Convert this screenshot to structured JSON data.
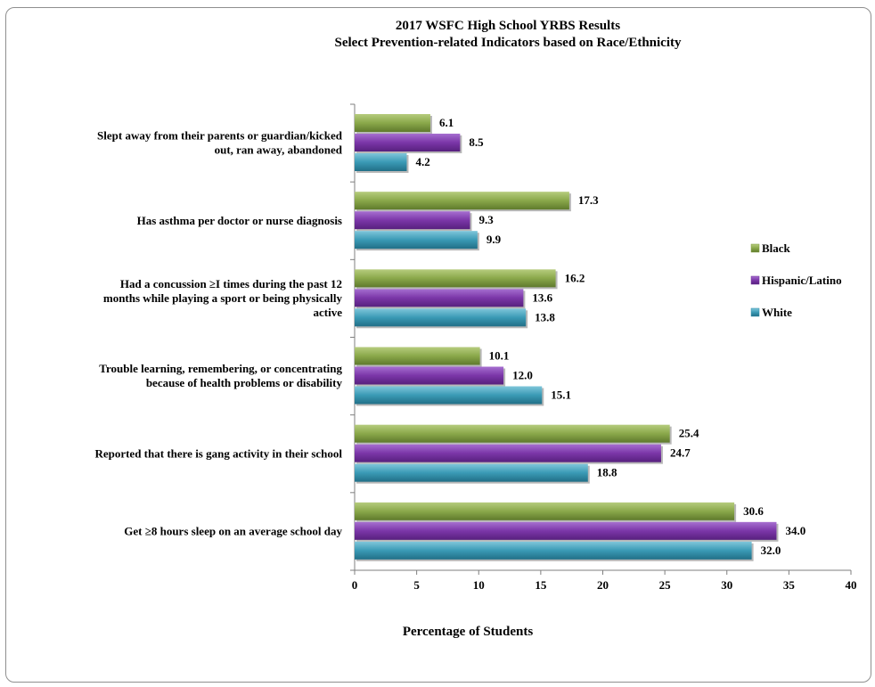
{
  "chart_data": {
    "type": "bar",
    "orientation": "horizontal",
    "title": "2017 WSFC High School YRBS Results",
    "subtitle": "Select Prevention-related Indicators based on Race/Ethnicity",
    "xlabel": "Percentage of Students",
    "ylabel": "",
    "xlim": [
      0,
      40
    ],
    "x_ticks": [
      0,
      5,
      10,
      15,
      20,
      25,
      30,
      35,
      40
    ],
    "grid": false,
    "legend_position": "right",
    "categories": [
      [
        "Slept away from their parents or guardian/kicked",
        "out, ran away, abandoned"
      ],
      [
        "Has asthma per doctor or nurse diagnosis"
      ],
      [
        "Had a concussion ≥I times during  the past 12",
        "months  while playing  a sport or being physically",
        "active"
      ],
      [
        "Trouble learning, remembering, or concentrating",
        "because of health problems or disability"
      ],
      [
        "Reported that there is gang activity in their school"
      ],
      [
        "Get ≥8 hours sleep on an average school day"
      ]
    ],
    "series": [
      {
        "name": "Black",
        "color": "#7f9a3f",
        "values": [
          6.1,
          17.3,
          16.2,
          10.1,
          25.4,
          30.6
        ],
        "labels": [
          "6.1",
          "17.3",
          "16.2",
          "10.1",
          "25.4",
          "30.6"
        ]
      },
      {
        "name": "Hispanic/Latino",
        "color": "#6f2f98",
        "values": [
          8.5,
          9.3,
          13.6,
          12.0,
          24.7,
          34.0
        ],
        "labels": [
          "8.5",
          "9.3",
          "13.6",
          "12.0",
          "24.7",
          "34.0"
        ]
      },
      {
        "name": "White",
        "color": "#2f8ca8",
        "values": [
          4.2,
          9.9,
          13.8,
          15.1,
          18.8,
          32.0
        ],
        "labels": [
          "4.2",
          "9.9",
          "13.8",
          "15.1",
          "18.8",
          "32.0"
        ]
      }
    ]
  }
}
